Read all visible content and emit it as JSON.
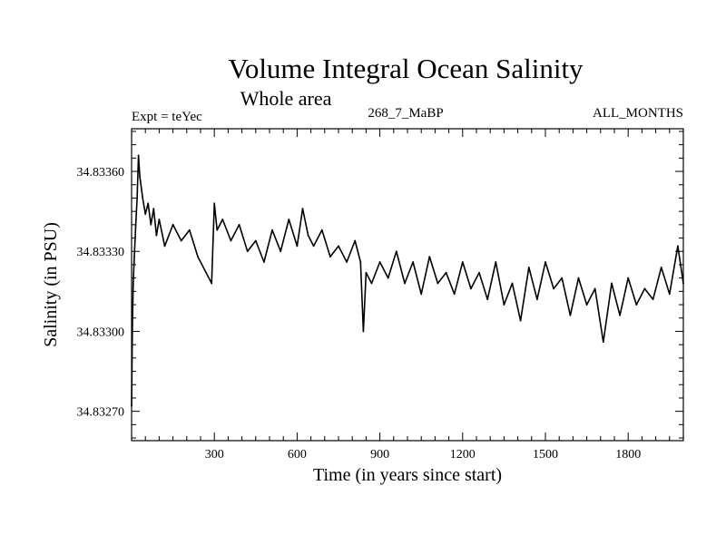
{
  "chart_data": {
    "type": "line",
    "title": "Volume Integral Ocean Salinity",
    "subtitle": "Whole area",
    "header_left": "Expt = teYec",
    "header_center": "268_7_MaBP",
    "header_right": "ALL_MONTHS",
    "xlabel": "Time (in years since start)",
    "ylabel": "Salinity (in PSU)",
    "xlim": [
      0,
      2000
    ],
    "ylim": [
      34.83259,
      34.83376
    ],
    "xticks": [
      300,
      600,
      900,
      1200,
      1500,
      1800
    ],
    "xtick_labels": [
      "300",
      "600",
      "900",
      "1200",
      "1500",
      "1800"
    ],
    "yticks": [
      34.8327,
      34.833,
      34.8333,
      34.8336
    ],
    "ytick_labels": [
      "34.83270",
      "34.83300",
      "34.83330",
      "34.83360"
    ],
    "series": [
      {
        "name": "Salinity",
        "color": "#000000",
        "x": [
          0,
          3,
          6,
          10,
          15,
          20,
          25,
          30,
          40,
          50,
          60,
          70,
          80,
          90,
          100,
          120,
          150,
          180,
          210,
          240,
          270,
          290,
          300,
          310,
          330,
          360,
          390,
          420,
          450,
          480,
          510,
          540,
          570,
          600,
          620,
          640,
          660,
          690,
          720,
          750,
          780,
          810,
          830,
          840,
          850,
          870,
          900,
          930,
          960,
          990,
          1020,
          1050,
          1080,
          1110,
          1140,
          1170,
          1200,
          1230,
          1260,
          1290,
          1320,
          1350,
          1380,
          1410,
          1440,
          1470,
          1500,
          1530,
          1560,
          1590,
          1620,
          1650,
          1680,
          1710,
          1740,
          1770,
          1800,
          1830,
          1860,
          1890,
          1920,
          1950,
          1980,
          2000
        ],
        "values": [
          34.83272,
          34.83302,
          34.83318,
          34.83328,
          34.8334,
          34.8335,
          34.83366,
          34.83358,
          34.8335,
          34.83344,
          34.83348,
          34.8334,
          34.83346,
          34.83336,
          34.83342,
          34.83332,
          34.8334,
          34.83334,
          34.83338,
          34.83328,
          34.83322,
          34.83318,
          34.83348,
          34.83338,
          34.83342,
          34.83334,
          34.8334,
          34.8333,
          34.83334,
          34.83326,
          34.83338,
          34.8333,
          34.83342,
          34.83332,
          34.83346,
          34.83336,
          34.83332,
          34.83338,
          34.83328,
          34.83332,
          34.83326,
          34.83334,
          34.83326,
          34.833,
          34.83322,
          34.83318,
          34.83326,
          34.8332,
          34.8333,
          34.83318,
          34.83326,
          34.83314,
          34.83328,
          34.83318,
          34.83322,
          34.83314,
          34.83326,
          34.83316,
          34.83322,
          34.83312,
          34.83326,
          34.8331,
          34.83318,
          34.83304,
          34.83324,
          34.83312,
          34.83326,
          34.83316,
          34.8332,
          34.83306,
          34.8332,
          34.8331,
          34.83316,
          34.83296,
          34.83318,
          34.83306,
          34.8332,
          34.8331,
          34.83316,
          34.83312,
          34.83324,
          34.83314,
          34.83332,
          34.83318
        ]
      }
    ]
  }
}
